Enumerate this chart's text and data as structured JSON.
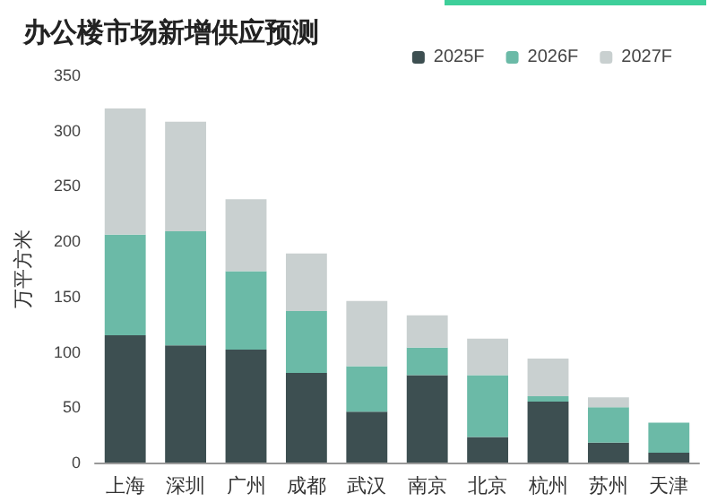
{
  "chart_data": {
    "type": "bar",
    "stacked": true,
    "title": "办公楼市场新增供应预测",
    "ylabel": "万平方米",
    "categories": [
      "上海",
      "深圳",
      "广州",
      "成都",
      "武汉",
      "南京",
      "北京",
      "杭州",
      "苏州",
      "天津"
    ],
    "series": [
      {
        "name": "2025F",
        "color": "#3d4f51",
        "values": [
          115,
          106,
          102,
          81,
          46,
          79,
          23,
          55,
          18,
          9
        ]
      },
      {
        "name": "2026F",
        "color": "#6bbaa7",
        "values": [
          91,
          103,
          71,
          56,
          41,
          25,
          56,
          5,
          32,
          27
        ]
      },
      {
        "name": "2027F",
        "color": "#c9d0d0",
        "values": [
          114,
          99,
          65,
          52,
          59,
          29,
          33,
          34,
          9,
          0
        ]
      }
    ],
    "ylim": [
      0,
      350
    ],
    "yticks": [
      0,
      50,
      100,
      150,
      200,
      250,
      300,
      350
    ],
    "grid": false,
    "legend": "top right"
  }
}
